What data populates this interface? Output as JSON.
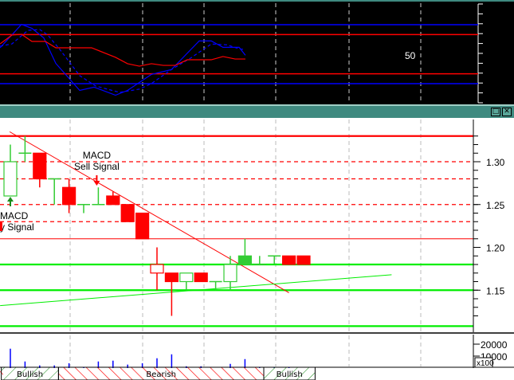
{
  "colors": {
    "titlebar": "#3f8a80",
    "indicator_bg": "#000000",
    "up": "#33cc33",
    "down": "#ff0000",
    "support": "#00ee00",
    "resistance": "#ff0000",
    "blue": "#0000ff"
  },
  "window_buttons": [
    {
      "icon": "restore-icon",
      "glyph": "□"
    },
    {
      "icon": "close-icon",
      "glyph": "✕"
    }
  ],
  "indicator": {
    "axis_label": "50",
    "range": [
      0,
      100
    ],
    "levels": [
      {
        "value": 80,
        "color": "#0000ff"
      },
      {
        "value": 70,
        "color": "#ff0000"
      },
      {
        "value": 30,
        "color": "#ff0000"
      },
      {
        "value": 20,
        "color": "#0000ff"
      }
    ],
    "series": [
      {
        "color": "#0000ff",
        "style": "solid",
        "points": [
          [
            -0.7,
            56.5
          ],
          [
            0.76,
            80.3
          ],
          [
            1.47,
            76.3
          ],
          [
            2.28,
            66.5
          ],
          [
            3.1,
            40.6
          ],
          [
            4.73,
            13.1
          ],
          [
            5.71,
            16.4
          ],
          [
            7.17,
            8.2
          ],
          [
            7.99,
            13.1
          ],
          [
            9.62,
            29.4
          ],
          [
            10.98,
            34.3
          ],
          [
            12.88,
            63.5
          ],
          [
            13.7,
            63.5
          ],
          [
            14.5,
            57
          ],
          [
            15.6,
            57
          ],
          [
            16.03,
            48.9
          ]
        ]
      },
      {
        "color": "#0000ff",
        "style": "dashed",
        "points": [
          [
            -0.7,
            58.1
          ],
          [
            0.11,
            60.5
          ],
          [
            1.2,
            74.3
          ],
          [
            2.01,
            75.1
          ],
          [
            2.55,
            69.5
          ],
          [
            3.37,
            54.9
          ],
          [
            4.73,
            28.1
          ],
          [
            5.82,
            17.6
          ],
          [
            7.45,
            11.1
          ],
          [
            8.8,
            14.4
          ],
          [
            9.62,
            20.1
          ],
          [
            10.98,
            34.3
          ],
          [
            12.34,
            46.5
          ],
          [
            13.7,
            60.3
          ],
          [
            14.78,
            59.5
          ],
          [
            15.6,
            55.4
          ],
          [
            16.03,
            54.6
          ]
        ]
      },
      {
        "color": "#ff0000",
        "style": "solid",
        "points": [
          [
            -0.7,
            60.5
          ],
          [
            0.11,
            69.5
          ],
          [
            0.76,
            70.3
          ],
          [
            1.47,
            63
          ],
          [
            2.39,
            63
          ],
          [
            3.1,
            56.5
          ],
          [
            5.54,
            56.5
          ],
          [
            7.17,
            46.8
          ],
          [
            7.99,
            40.3
          ],
          [
            8.8,
            37.8
          ],
          [
            9.62,
            40.3
          ],
          [
            10.43,
            38.6
          ],
          [
            11.25,
            38.6
          ],
          [
            12.07,
            44.3
          ],
          [
            13.7,
            44.3
          ],
          [
            14.5,
            47.6
          ],
          [
            15.33,
            45.1
          ],
          [
            16.03,
            45.1
          ]
        ]
      }
    ]
  },
  "chart_data": {
    "type": "candlestick",
    "y_ticks": [
      "1.30",
      "1.25",
      "1.20",
      "1.15"
    ],
    "ylim": [
      1.105,
      1.355
    ],
    "candles": [
      {
        "o": 1.26,
        "h": 1.32,
        "l": 1.26,
        "c": 1.3
      },
      {
        "o": 1.31,
        "h": 1.33,
        "l": 1.3,
        "c": 1.31
      },
      {
        "o": 1.31,
        "h": 1.31,
        "l": 1.27,
        "c": 1.28
      },
      {
        "o": 1.28,
        "h": 1.28,
        "l": 1.25,
        "c": 1.28
      },
      {
        "o": 1.27,
        "h": 1.28,
        "l": 1.24,
        "c": 1.25
      },
      {
        "o": 1.25,
        "h": 1.25,
        "l": 1.24,
        "c": 1.25
      },
      {
        "o": 1.25,
        "h": 1.27,
        "l": 1.25,
        "c": 1.25
      },
      {
        "o": 1.26,
        "h": 1.265,
        "l": 1.25,
        "c": 1.25
      },
      {
        "o": 1.25,
        "h": 1.25,
        "l": 1.23,
        "c": 1.23
      },
      {
        "o": 1.24,
        "h": 1.24,
        "l": 1.21,
        "c": 1.21
      },
      {
        "o": 1.17,
        "h": 1.2,
        "l": 1.15,
        "c": 1.18,
        "outline": true
      },
      {
        "o": 1.17,
        "h": 1.17,
        "l": 1.12,
        "c": 1.16
      },
      {
        "o": 1.16,
        "h": 1.17,
        "l": 1.15,
        "c": 1.17
      },
      {
        "o": 1.17,
        "h": 1.17,
        "l": 1.16,
        "c": 1.16
      },
      {
        "o": 1.16,
        "h": 1.16,
        "l": 1.15,
        "c": 1.16
      },
      {
        "o": 1.16,
        "h": 1.19,
        "l": 1.15,
        "c": 1.18
      },
      {
        "o": 1.18,
        "h": 1.21,
        "l": 1.18,
        "c": 1.19
      },
      {
        "o": 1.18,
        "h": 1.19,
        "l": 1.18,
        "c": 1.18
      },
      {
        "o": 1.19,
        "h": 1.19,
        "l": 1.18,
        "c": 1.19
      },
      {
        "o": 1.19,
        "h": 1.19,
        "l": 1.18,
        "c": 1.18
      },
      {
        "o": 1.19,
        "h": 1.19,
        "l": 1.18,
        "c": 1.18
      }
    ],
    "horizontal_lines": [
      {
        "value": 1.33,
        "color": "#ff0000",
        "style": "solid"
      },
      {
        "value": 1.3,
        "color": "#ff0000",
        "style": "dashed"
      },
      {
        "value": 1.28,
        "color": "#ff0000",
        "style": "dashed"
      },
      {
        "value": 1.25,
        "color": "#ff0000",
        "style": "dashed"
      },
      {
        "value": 1.23,
        "color": "#ff0000",
        "style": "dashed"
      },
      {
        "value": 1.21,
        "color": "#ff0000",
        "style": "thin"
      },
      {
        "value": 1.18,
        "color": "#00ee00",
        "style": "solid"
      },
      {
        "value": 1.15,
        "color": "#00ee00",
        "style": "solid"
      },
      {
        "value": 1.108,
        "color": "#00ee00",
        "style": "solid"
      }
    ],
    "trend_lines": [
      {
        "color": "#ff0000",
        "from": [
          -0.05,
          1.335
        ],
        "to": [
          19,
          1.147
        ]
      },
      {
        "color": "#00ee00",
        "from": [
          -0.7,
          1.132
        ],
        "to": [
          26,
          1.168
        ]
      }
    ],
    "annotations": [
      {
        "lines": [
          "MACD",
          "Sell Signal"
        ],
        "bar": 6,
        "type": "sell"
      },
      {
        "lines": [
          "MACD",
          "y Signal"
        ],
        "bar": 0,
        "type": "buy"
      }
    ],
    "volume": {
      "ticks": [
        "20000",
        "10000"
      ],
      "multiplier_label": "x100",
      "values": [
        16200,
        5500,
        2200,
        2200,
        4000,
        700,
        5500,
        6200,
        2900,
        4000,
        8200,
        11500,
        1500,
        1500,
        0,
        3500,
        7500,
        900,
        700,
        900,
        0
      ]
    },
    "trend_bands": [
      {
        "label": "Bullish",
        "type": "bullish",
        "from_bar": -0.4,
        "to_bar": 3.5
      },
      {
        "label": "Bearish",
        "type": "bearish",
        "from_bar": 3.5,
        "to_bar": 17.5
      },
      {
        "label": "Bullish",
        "type": "bullish",
        "from_bar": 17.5,
        "to_bar": 21
      }
    ]
  }
}
